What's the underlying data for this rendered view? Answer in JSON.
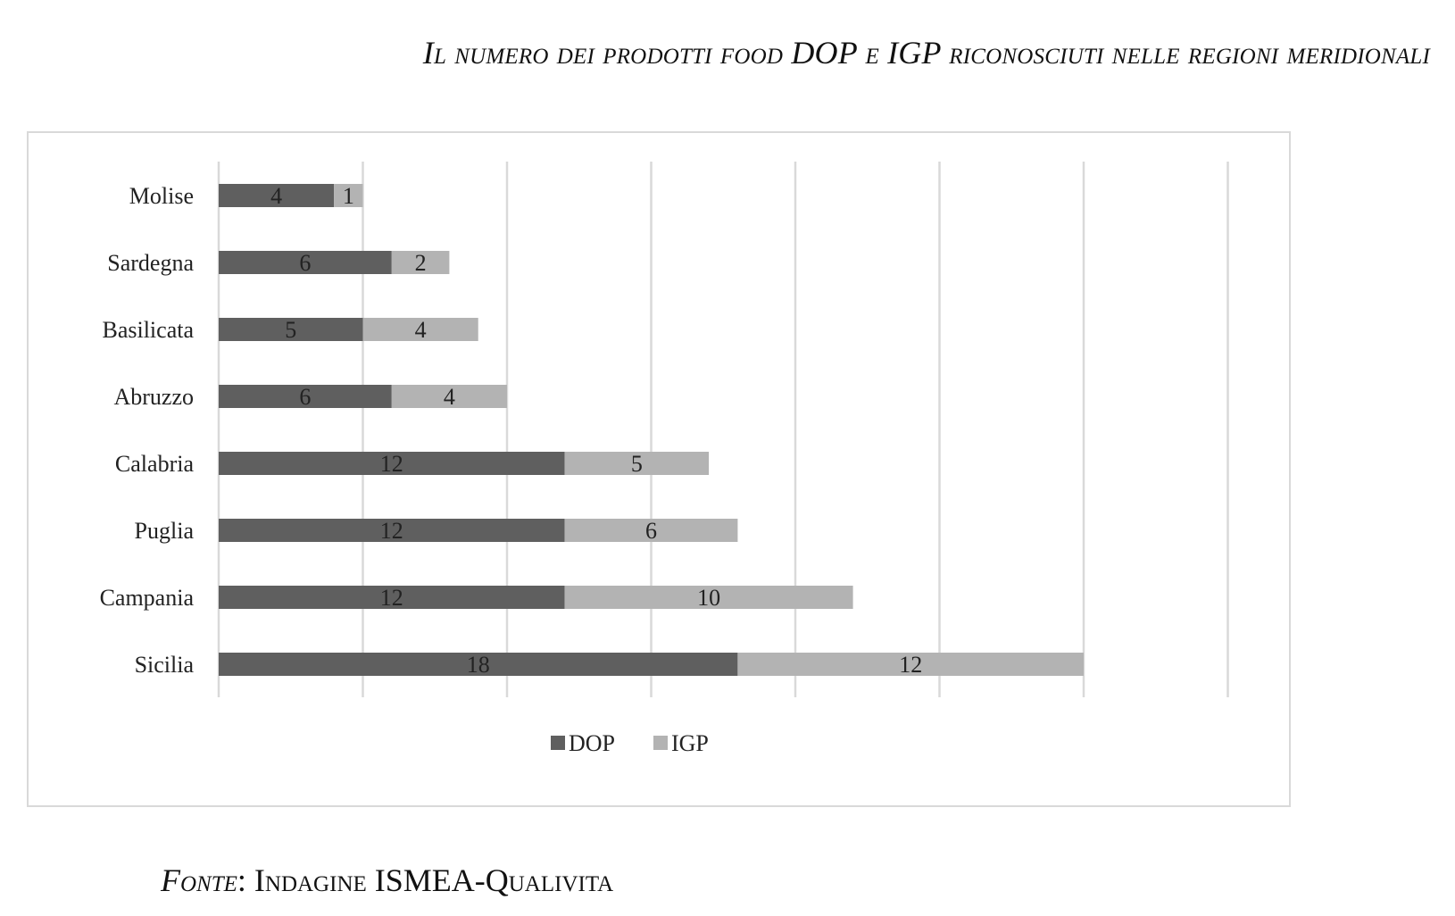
{
  "title": "Il numero dei prodotti food DOP e IGP riconosciuti nelle regioni meridionali",
  "source": {
    "label": "Fonte",
    "text": ": Indagine ISMEA-Qualivita"
  },
  "chart_data": {
    "type": "bar",
    "orientation": "horizontal",
    "stacked": true,
    "categories": [
      "Molise",
      "Sardegna",
      "Basilicata",
      "Abruzzo",
      "Calabria",
      "Puglia",
      "Campania",
      "Sicilia"
    ],
    "series": [
      {
        "name": "DOP",
        "values": [
          4,
          6,
          5,
          6,
          12,
          12,
          12,
          18
        ],
        "color": "#5f5f5f"
      },
      {
        "name": "IGP",
        "values": [
          1,
          2,
          4,
          4,
          5,
          6,
          10,
          12
        ],
        "color": "#b3b3b3"
      }
    ],
    "xlim": [
      0,
      35
    ],
    "grid": true,
    "legend": "bottom-center"
  }
}
